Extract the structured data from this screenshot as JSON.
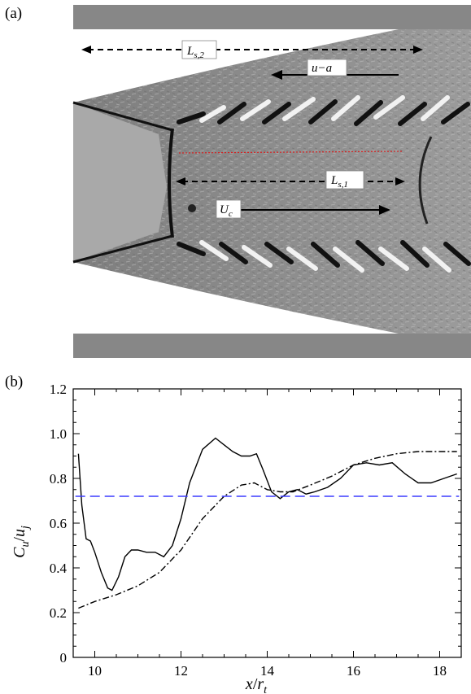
{
  "panel_a": {
    "label": "(a)",
    "annotations": {
      "ls2": "L",
      "ls2_sub": "s,2",
      "ua": "u−a",
      "ls1": "L",
      "ls1_sub": "s,1",
      "uc": "U",
      "uc_sub": "c"
    },
    "colors": {
      "background": "#8f8f8f",
      "plate": "#8a8a8a",
      "core": "#a6a6a6",
      "redline": "#d62020"
    }
  },
  "panel_b": {
    "label": "(b)"
  },
  "chart_data": {
    "type": "line",
    "xlabel": "x/r_t",
    "ylabel": "C_u/u_j",
    "xlim": [
      9.5,
      18.5
    ],
    "ylim": [
      0,
      1.2
    ],
    "x_ticks": [
      10,
      12,
      14,
      16,
      18
    ],
    "y_ticks": [
      0,
      0.2,
      0.4,
      0.6,
      0.8,
      1.0,
      1.2
    ],
    "x_tick_labels": [
      "10",
      "12",
      "14",
      "16",
      "18"
    ],
    "y_tick_labels": [
      "0",
      "0.2",
      "0.4",
      "0.6",
      "0.8",
      "1.0",
      "1.2"
    ],
    "grid": false,
    "series": [
      {
        "style": "solid",
        "color": "#000000",
        "points": [
          [
            9.62,
            0.91
          ],
          [
            9.7,
            0.68
          ],
          [
            9.8,
            0.53
          ],
          [
            9.9,
            0.52
          ],
          [
            10.0,
            0.47
          ],
          [
            10.15,
            0.38
          ],
          [
            10.3,
            0.31
          ],
          [
            10.4,
            0.3
          ],
          [
            10.55,
            0.36
          ],
          [
            10.7,
            0.45
          ],
          [
            10.85,
            0.48
          ],
          [
            11.0,
            0.48
          ],
          [
            11.2,
            0.47
          ],
          [
            11.4,
            0.47
          ],
          [
            11.6,
            0.45
          ],
          [
            11.8,
            0.5
          ],
          [
            12.0,
            0.62
          ],
          [
            12.2,
            0.78
          ],
          [
            12.5,
            0.93
          ],
          [
            12.8,
            0.98
          ],
          [
            13.0,
            0.95
          ],
          [
            13.2,
            0.92
          ],
          [
            13.4,
            0.9
          ],
          [
            13.6,
            0.9
          ],
          [
            13.75,
            0.91
          ],
          [
            13.9,
            0.84
          ],
          [
            14.1,
            0.74
          ],
          [
            14.3,
            0.71
          ],
          [
            14.5,
            0.74
          ],
          [
            14.7,
            0.75
          ],
          [
            14.9,
            0.73
          ],
          [
            15.1,
            0.74
          ],
          [
            15.4,
            0.76
          ],
          [
            15.7,
            0.8
          ],
          [
            16.0,
            0.86
          ],
          [
            16.3,
            0.87
          ],
          [
            16.6,
            0.86
          ],
          [
            16.9,
            0.87
          ],
          [
            17.2,
            0.82
          ],
          [
            17.5,
            0.78
          ],
          [
            17.8,
            0.78
          ],
          [
            18.1,
            0.8
          ],
          [
            18.4,
            0.82
          ]
        ]
      },
      {
        "style": "dash-dot",
        "color": "#000000",
        "points": [
          [
            9.62,
            0.22
          ],
          [
            10.0,
            0.25
          ],
          [
            10.5,
            0.28
          ],
          [
            11.0,
            0.32
          ],
          [
            11.5,
            0.38
          ],
          [
            12.0,
            0.48
          ],
          [
            12.5,
            0.62
          ],
          [
            13.0,
            0.72
          ],
          [
            13.4,
            0.77
          ],
          [
            13.7,
            0.78
          ],
          [
            14.0,
            0.75
          ],
          [
            14.3,
            0.74
          ],
          [
            14.6,
            0.74
          ],
          [
            15.0,
            0.77
          ],
          [
            15.5,
            0.81
          ],
          [
            16.0,
            0.86
          ],
          [
            16.5,
            0.89
          ],
          [
            17.0,
            0.91
          ],
          [
            17.5,
            0.92
          ],
          [
            18.0,
            0.92
          ],
          [
            18.4,
            0.92
          ]
        ]
      },
      {
        "style": "dashed",
        "color": "#3b3bff",
        "points": [
          [
            9.55,
            0.72
          ],
          [
            18.45,
            0.72
          ]
        ]
      }
    ]
  }
}
